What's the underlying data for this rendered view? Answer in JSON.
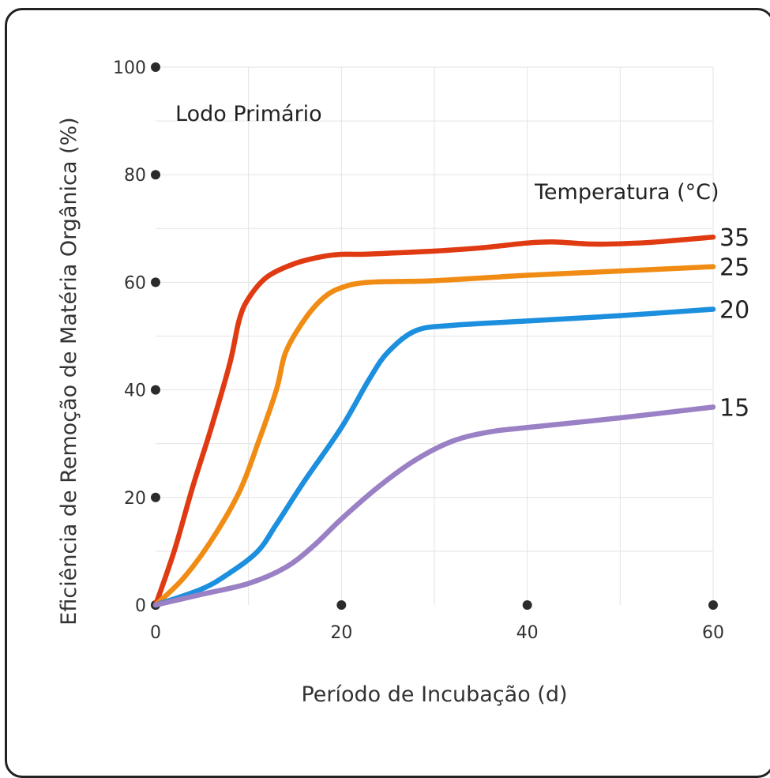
{
  "chart_data": {
    "type": "line",
    "title": "",
    "annotation": "Lodo Primário",
    "xlabel": "Período de Incubação (d)",
    "ylabel": "Eficiência de Remoção de Matéria Orgânica (%)",
    "legend_title": "Temperatura (°C)",
    "legend_placement": "right, at line ends",
    "xlim": [
      0,
      60
    ],
    "ylim": [
      0,
      100
    ],
    "x_ticks": [
      0,
      20,
      40,
      60
    ],
    "y_ticks": [
      0,
      20,
      40,
      60,
      80,
      100
    ],
    "grid": true,
    "series": [
      {
        "name": "35",
        "color": "#e03a12",
        "points": [
          [
            0,
            0
          ],
          [
            2,
            10
          ],
          [
            4,
            22
          ],
          [
            6,
            33
          ],
          [
            8,
            45
          ],
          [
            9,
            53
          ],
          [
            10,
            57
          ],
          [
            12,
            61
          ],
          [
            15,
            63.5
          ],
          [
            18,
            64.8
          ],
          [
            20,
            65.2
          ],
          [
            22,
            65.2
          ],
          [
            25,
            65.4
          ],
          [
            30,
            65.8
          ],
          [
            35,
            66.4
          ],
          [
            40,
            67.3
          ],
          [
            43,
            67.5
          ],
          [
            47,
            67.1
          ],
          [
            52,
            67.3
          ],
          [
            56,
            67.8
          ],
          [
            60,
            68.4
          ]
        ]
      },
      {
        "name": "25",
        "color": "#f08c14",
        "points": [
          [
            0,
            0
          ],
          [
            3,
            5
          ],
          [
            6,
            12
          ],
          [
            9,
            21
          ],
          [
            11,
            30
          ],
          [
            13,
            40
          ],
          [
            14,
            47
          ],
          [
            16,
            53
          ],
          [
            18,
            57
          ],
          [
            20,
            59
          ],
          [
            23,
            60
          ],
          [
            30,
            60.3
          ],
          [
            40,
            61.3
          ],
          [
            50,
            62.1
          ],
          [
            60,
            62.9
          ]
        ]
      },
      {
        "name": "20",
        "color": "#1c8fde",
        "points": [
          [
            0,
            0
          ],
          [
            5,
            3
          ],
          [
            8,
            6
          ],
          [
            11,
            10
          ],
          [
            13,
            15
          ],
          [
            16,
            23
          ],
          [
            20,
            33
          ],
          [
            23,
            42
          ],
          [
            25,
            47
          ],
          [
            28,
            51
          ],
          [
            32,
            52
          ],
          [
            40,
            52.8
          ],
          [
            50,
            53.8
          ],
          [
            60,
            55
          ]
        ]
      },
      {
        "name": "15",
        "color": "#9a80c4",
        "points": [
          [
            0,
            0
          ],
          [
            5,
            2
          ],
          [
            10,
            4
          ],
          [
            14,
            7
          ],
          [
            17,
            11
          ],
          [
            20,
            16
          ],
          [
            24,
            22
          ],
          [
            28,
            27
          ],
          [
            32,
            30.5
          ],
          [
            36,
            32.2
          ],
          [
            40,
            33
          ],
          [
            50,
            34.8
          ],
          [
            60,
            36.8
          ]
        ]
      }
    ]
  }
}
